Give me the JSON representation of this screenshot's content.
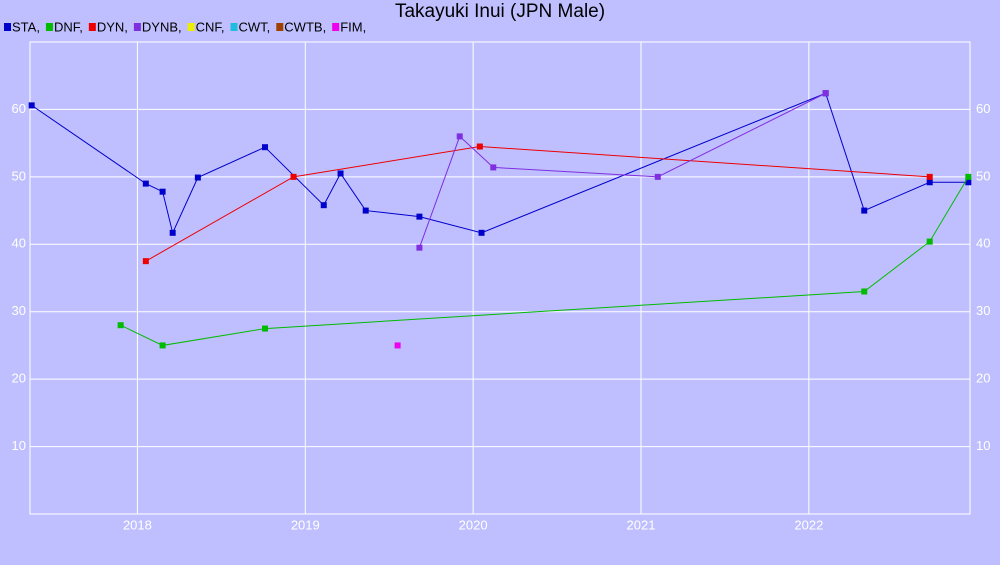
{
  "chart_data": {
    "type": "line",
    "title": "Takayuki Inui (JPN Male)",
    "xlim": [
      2017.36,
      2022.96
    ],
    "xticks": [
      2018,
      2019,
      2020,
      2021,
      2022
    ],
    "ylim": [
      0,
      70
    ],
    "yticks": [
      10,
      20,
      30,
      40,
      50,
      60
    ],
    "grid": true,
    "series": [
      {
        "name": "STA,",
        "color": "#0000cc",
        "x": [
          2017.37,
          2018.05,
          2018.15,
          2018.21,
          2018.36,
          2018.76,
          2019.11,
          2019.21,
          2019.36,
          2019.68,
          2020.05,
          2022.1,
          2022.33,
          2022.72,
          2022.95
        ],
        "values": [
          60.6,
          49.0,
          47.8,
          41.7,
          49.9,
          54.4,
          45.8,
          50.5,
          45.0,
          44.1,
          41.7,
          62.4,
          45.0,
          49.2,
          49.2
        ]
      },
      {
        "name": "DNF,",
        "color": "#00bb00",
        "x": [
          2017.9,
          2018.15,
          2018.76,
          2022.33,
          2022.72,
          2022.95
        ],
        "values": [
          28.0,
          25.0,
          27.5,
          33.0,
          40.4,
          50.0
        ]
      },
      {
        "name": "DYN,",
        "color": "#ee0000",
        "x": [
          2018.05,
          2018.93,
          2020.04,
          2022.72
        ],
        "values": [
          37.5,
          50.0,
          54.5,
          50.0
        ]
      },
      {
        "name": "DYNB,",
        "color": "#7f2fdf",
        "x": [
          2019.68,
          2019.92,
          2020.12,
          2021.1,
          2022.1
        ],
        "values": [
          39.5,
          56.0,
          51.4,
          50.0,
          62.4
        ]
      },
      {
        "name": "CNF,",
        "color": "#eeee00",
        "x": [],
        "values": []
      },
      {
        "name": "CWT,",
        "color": "#22bbdd",
        "x": [],
        "values": []
      },
      {
        "name": "CWTB,",
        "color": "#a04000",
        "x": [],
        "values": []
      },
      {
        "name": "FIM,",
        "color": "#ee00ee",
        "x": [
          2019.55
        ],
        "values": [
          25.0
        ]
      }
    ]
  }
}
